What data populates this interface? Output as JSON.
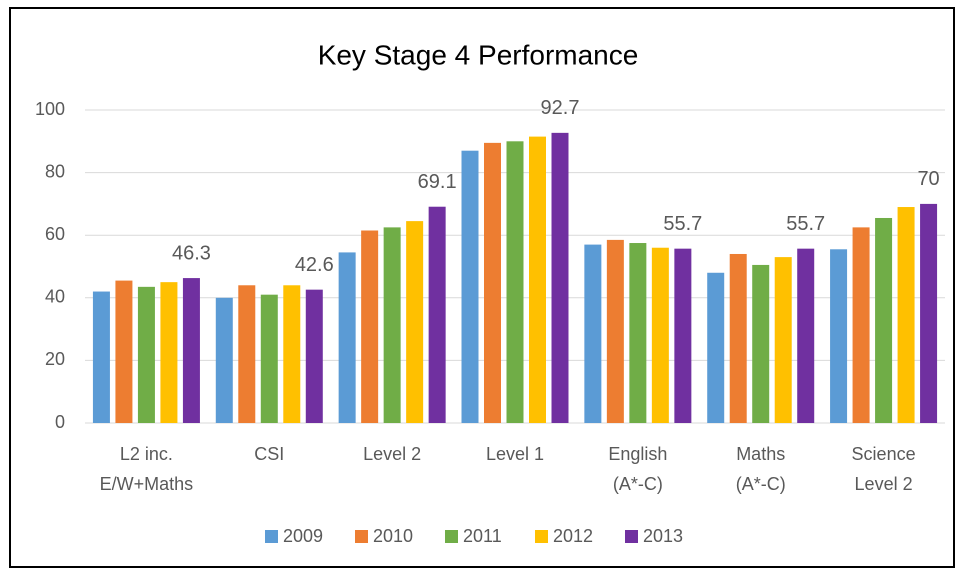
{
  "chart_data": {
    "type": "bar",
    "title": "Key Stage 4 Performance",
    "categories": [
      [
        "L2 inc.",
        "E/W+Maths"
      ],
      [
        "CSI"
      ],
      [
        "Level 2"
      ],
      [
        "Level 1"
      ],
      [
        "English",
        "(A*-C)"
      ],
      [
        "Maths",
        "(A*-C)"
      ],
      [
        "Science",
        "Level 2"
      ]
    ],
    "series": [
      {
        "name": "2009",
        "color": "#5b9bd5",
        "values": [
          42,
          40,
          54.5,
          87,
          57,
          48,
          55.5
        ]
      },
      {
        "name": "2010",
        "color": "#ed7d31",
        "values": [
          45.5,
          44,
          61.5,
          89.5,
          58.5,
          54,
          62.5
        ]
      },
      {
        "name": "2011",
        "color": "#70ad47",
        "values": [
          43.5,
          41,
          62.5,
          90,
          57.5,
          50.5,
          65.5
        ]
      },
      {
        "name": "2012",
        "color": "#ffc000",
        "values": [
          45,
          44,
          64.5,
          91.5,
          56,
          53,
          69
        ]
      },
      {
        "name": "2013",
        "color": "#7030a0",
        "values": [
          46.3,
          42.6,
          69.1,
          92.7,
          55.7,
          55.7,
          70
        ],
        "data_labels": true
      }
    ],
    "ylim": [
      0,
      100
    ],
    "yticks": [
      0,
      20,
      40,
      60,
      80,
      100
    ],
    "grid": true,
    "legend": "bottom"
  }
}
